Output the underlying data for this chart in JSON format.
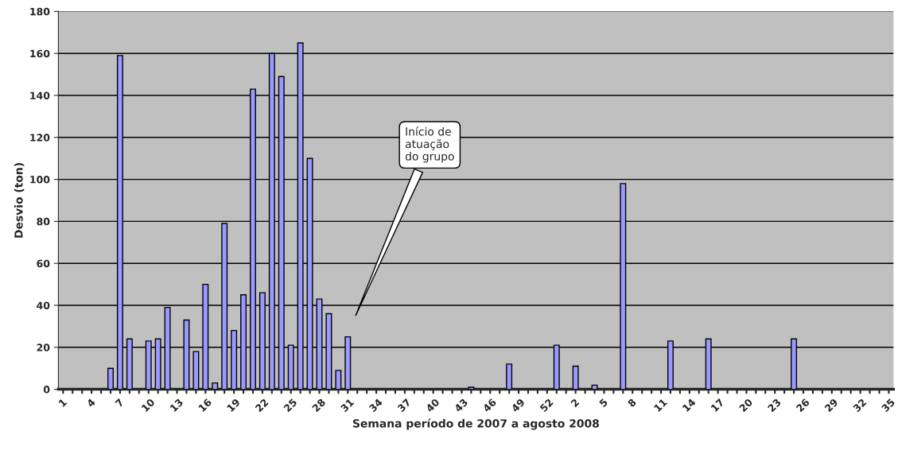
{
  "chart_data": {
    "type": "bar",
    "xlabel": "Semana período de 2007 a agosto 2008",
    "ylabel": "Desvio (ton)",
    "categories": [
      "1",
      null,
      null,
      "4",
      null,
      null,
      "7",
      null,
      null,
      "10",
      null,
      null,
      "13",
      null,
      null,
      "16",
      null,
      null,
      "19",
      null,
      null,
      "22",
      null,
      null,
      "25",
      null,
      null,
      "28",
      null,
      null,
      "31",
      null,
      null,
      "34",
      null,
      null,
      "37",
      null,
      null,
      "40",
      null,
      null,
      "43",
      null,
      null,
      "46",
      null,
      null,
      "49",
      null,
      null,
      "52",
      null,
      null,
      "2",
      null,
      null,
      "5",
      null,
      null,
      "8",
      null,
      null,
      "11",
      null,
      null,
      "14",
      null,
      null,
      "17",
      null,
      null,
      "20",
      null,
      null,
      "23",
      null,
      null,
      "26",
      null,
      null,
      "29",
      null,
      null,
      "32",
      null,
      null,
      "35"
    ],
    "values": [
      0,
      0,
      0,
      0,
      0,
      10,
      159,
      24,
      0,
      23,
      24,
      39,
      0,
      33,
      18,
      50,
      3,
      79,
      28,
      45,
      143,
      46,
      160,
      149,
      21,
      165,
      110,
      43,
      36,
      9,
      25,
      0,
      0,
      0,
      0,
      0,
      0,
      0,
      0,
      0,
      0,
      0,
      0,
      1,
      0,
      0,
      0,
      12,
      0,
      0,
      0,
      0,
      21,
      0,
      11,
      0,
      2,
      0,
      0,
      98,
      0,
      0,
      0,
      0,
      23,
      0,
      0,
      0,
      24,
      0,
      0,
      0,
      0,
      0,
      0,
      0,
      0,
      24,
      0,
      0,
      0,
      0,
      0,
      0,
      0,
      0,
      0,
      0
    ],
    "color": "#9999ff",
    "ylim": [
      0,
      180
    ],
    "yticks": [
      0,
      20,
      40,
      60,
      80,
      100,
      120,
      140,
      160,
      180
    ],
    "grid": "y",
    "annotations": [
      "Início de\natuação\ndo grupo"
    ]
  }
}
